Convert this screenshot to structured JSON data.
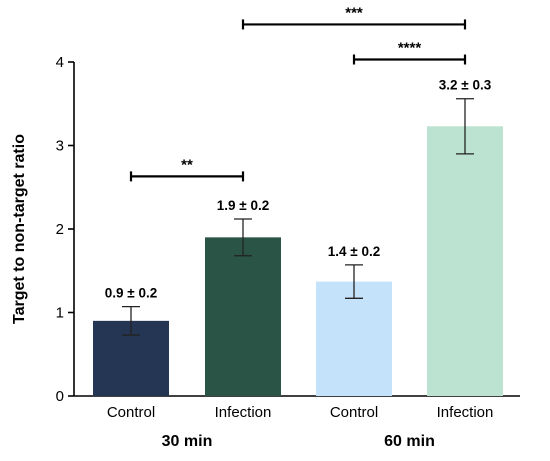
{
  "chart_data": {
    "type": "bar",
    "ylabel": "Target to non-target  ratio",
    "ylim": [
      0,
      4
    ],
    "yticks": [
      "0",
      "1",
      "2",
      "3",
      "4"
    ],
    "grid": false,
    "categories": [
      "Control",
      "Infection",
      "Control",
      "Infection"
    ],
    "groups": [
      {
        "label": "30 min",
        "categories": [
          0,
          1
        ]
      },
      {
        "label": "60 min",
        "categories": [
          2,
          3
        ]
      }
    ],
    "values": [
      0.9,
      1.9,
      1.37,
      3.23
    ],
    "errors": [
      0.17,
      0.22,
      0.2,
      0.33
    ],
    "data_labels": [
      "0.9 ± 0.2",
      "1.9 ± 0.2",
      "1.4 ± 0.2",
      "3.2 ± 0.3"
    ],
    "colors": [
      "#253654",
      "#2a5446",
      "#c5e2fb",
      "#bce3d1"
    ],
    "significance": [
      {
        "from": 0,
        "to": 1,
        "label": "**",
        "y": 2.63
      },
      {
        "from": 2,
        "to": 3,
        "label": "****",
        "y": 4.03
      },
      {
        "from": 1,
        "to": 3,
        "label": "***",
        "y": 4.45
      }
    ]
  }
}
